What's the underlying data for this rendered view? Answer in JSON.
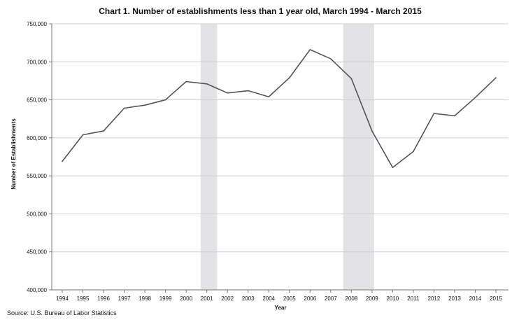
{
  "chart_data": {
    "type": "line",
    "title": "Chart 1. Number of establishments less than 1 year old, March 1994 - March 2015",
    "xlabel": "Year",
    "ylabel": "Number of Establishments",
    "x": [
      1994,
      1995,
      1996,
      1997,
      1998,
      1999,
      2000,
      2001,
      2002,
      2003,
      2004,
      2005,
      2006,
      2007,
      2008,
      2009,
      2010,
      2011,
      2012,
      2013,
      2014,
      2015
    ],
    "x_tick_labels": [
      "1994",
      "1995",
      "1996",
      "1997",
      "1998",
      "1999",
      "2000",
      "2001",
      "2002",
      "2003",
      "2004",
      "2005",
      "2006",
      "2007",
      "2008",
      "2009",
      "2010",
      "2011",
      "2012",
      "2013",
      "2014",
      "2015"
    ],
    "series": [
      {
        "values": [
          569000,
          604000,
          609000,
          639000,
          643000,
          650000,
          674000,
          671000,
          659000,
          662000,
          654000,
          679000,
          716000,
          704000,
          678000,
          609000,
          561000,
          582000,
          632000,
          629000,
          653000,
          679000
        ]
      }
    ],
    "ylim": [
      400000,
      750000
    ],
    "y_ticks": [
      400000,
      450000,
      500000,
      550000,
      600000,
      650000,
      700000,
      750000
    ],
    "y_tick_labels": [
      "400,000",
      "450,000",
      "500,000",
      "550,000",
      "600,000",
      "650,000",
      "700,000",
      "750,000"
    ],
    "recession_shading": [
      {
        "start": 2000.7,
        "end": 2001.5
      },
      {
        "start": 2007.6,
        "end": 2009.1
      }
    ],
    "grid": "horizontal",
    "legend": "none",
    "source": "Source: U.S. Bureau of Labor Statistics",
    "colors": {
      "line": "#555555",
      "grid": "#d0d0d0",
      "shading": "#e3e3e6",
      "text": "#111111"
    }
  }
}
